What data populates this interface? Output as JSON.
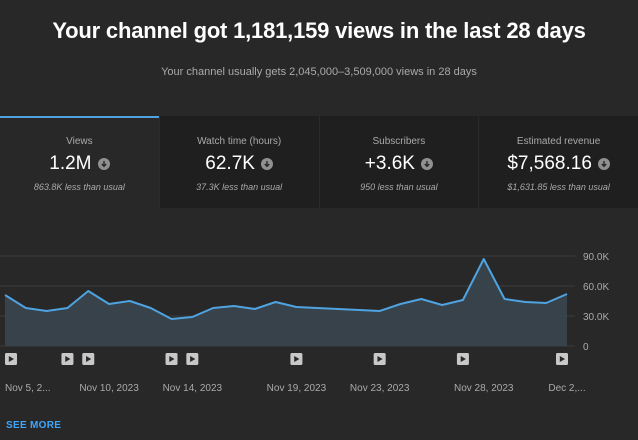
{
  "header": {
    "title": "Your channel got 1,181,159 views in the last 28 days",
    "subtitle": "Your channel usually gets 2,045,000–3,509,000 views in 28 days"
  },
  "metrics": [
    {
      "label": "Views",
      "value": "1.2M",
      "note": "863.8K less than usual",
      "icon": "arrow-down-circle-icon",
      "active": true
    },
    {
      "label": "Watch time (hours)",
      "value": "62.7K",
      "note": "37.3K less than usual",
      "icon": "arrow-down-circle-icon",
      "active": false
    },
    {
      "label": "Subscribers",
      "value": "+3.6K",
      "note": "950 less than usual",
      "icon": "arrow-down-circle-icon",
      "active": false
    },
    {
      "label": "Estimated revenue",
      "value": "$7,568.16",
      "note": "$1,631.85 less than usual",
      "icon": "arrow-down-circle-icon",
      "active": false
    }
  ],
  "colors": {
    "accent_blue": "#4fa3e0",
    "link_blue": "#3ea6ff",
    "background": "#282828",
    "card_background": "#1f1f1f"
  },
  "chart_data": {
    "type": "area",
    "x": [
      "Nov 5, 2023",
      "Nov 6, 2023",
      "Nov 7, 2023",
      "Nov 8, 2023",
      "Nov 9, 2023",
      "Nov 10, 2023",
      "Nov 11, 2023",
      "Nov 12, 2023",
      "Nov 13, 2023",
      "Nov 14, 2023",
      "Nov 15, 2023",
      "Nov 16, 2023",
      "Nov 17, 2023",
      "Nov 18, 2023",
      "Nov 19, 2023",
      "Nov 20, 2023",
      "Nov 21, 2023",
      "Nov 22, 2023",
      "Nov 23, 2023",
      "Nov 24, 2023",
      "Nov 25, 2023",
      "Nov 26, 2023",
      "Nov 27, 2023",
      "Nov 28, 2023",
      "Nov 29, 2023",
      "Nov 30, 2023",
      "Dec 1, 2023",
      "Dec 2, 2023"
    ],
    "series": [
      {
        "values": [
          51000,
          38000,
          35000,
          38000,
          55000,
          42000,
          45000,
          38000,
          27000,
          29000,
          38000,
          40000,
          37000,
          44000,
          39000,
          38000,
          37000,
          36000,
          35000,
          42000,
          47000,
          41000,
          46000,
          87000,
          47000,
          44000,
          43000,
          52000
        ]
      }
    ],
    "x_tick_labels": [
      {
        "index": 0,
        "label": "Nov 5, 2..."
      },
      {
        "index": 5,
        "label": "Nov 10, 2023"
      },
      {
        "index": 9,
        "label": "Nov 14, 2023"
      },
      {
        "index": 14,
        "label": "Nov 19, 2023"
      },
      {
        "index": 18,
        "label": "Nov 23, 2023"
      },
      {
        "index": 23,
        "label": "Nov 28, 2023"
      },
      {
        "index": 27,
        "label": "Dec 2,..."
      }
    ],
    "y_ticks": [
      {
        "value": 0,
        "label": "0"
      },
      {
        "value": 30000,
        "label": "30.0K"
      },
      {
        "value": 60000,
        "label": "60.0K"
      },
      {
        "value": 90000,
        "label": "90.0K"
      }
    ],
    "ylim": [
      0,
      90000
    ],
    "grid": true,
    "y_axis_side": "right",
    "video_markers": [
      0,
      3,
      4,
      8,
      9,
      14,
      18,
      22,
      27
    ]
  },
  "footer": {
    "see_more_label": "SEE MORE"
  }
}
